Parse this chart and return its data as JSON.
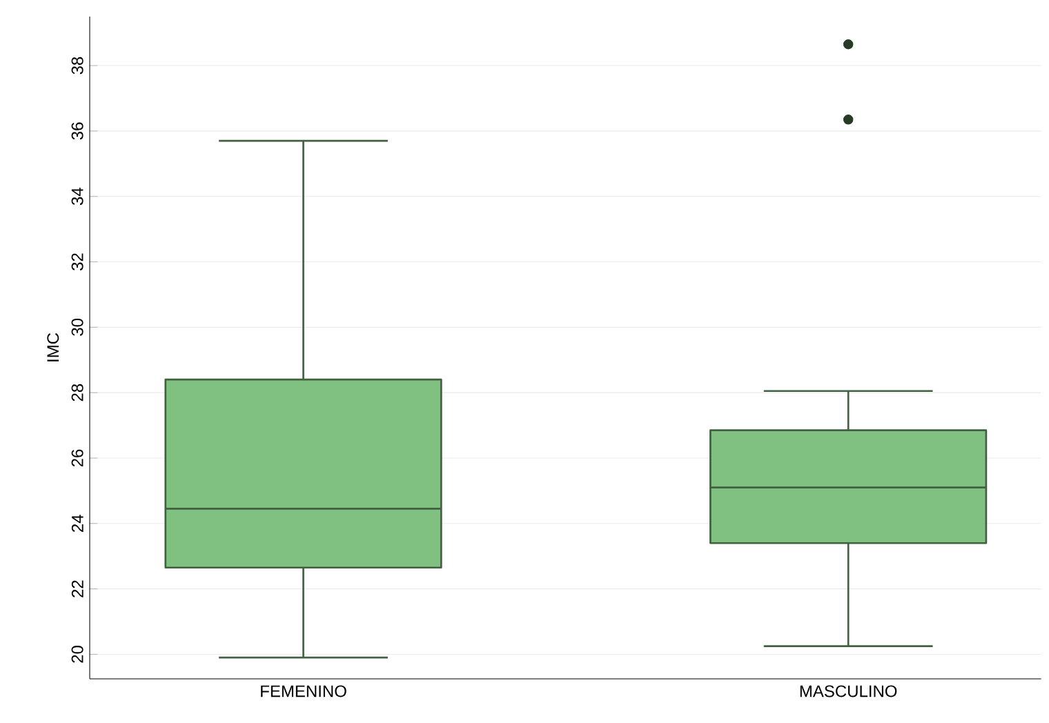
{
  "chart_data": {
    "type": "box",
    "ylabel": "IMC",
    "categories": [
      "FEMENINO",
      "MASCULINO"
    ],
    "series": [
      {
        "color": "#80c080",
        "boxes": [
          {
            "low": 19.9,
            "q1": 22.65,
            "median": 24.45,
            "q3": 28.4,
            "high": 35.7
          },
          {
            "low": 20.25,
            "q1": 23.4,
            "median": 25.1,
            "q3": 26.85,
            "high": 28.05,
            "outliers": [
              36.35,
              38.65
            ]
          }
        ]
      }
    ],
    "ylim": [
      19.25,
      39.5
    ],
    "yticks": [
      20,
      22,
      24,
      26,
      28,
      30,
      32,
      34,
      36,
      38
    ],
    "grid": "y"
  }
}
